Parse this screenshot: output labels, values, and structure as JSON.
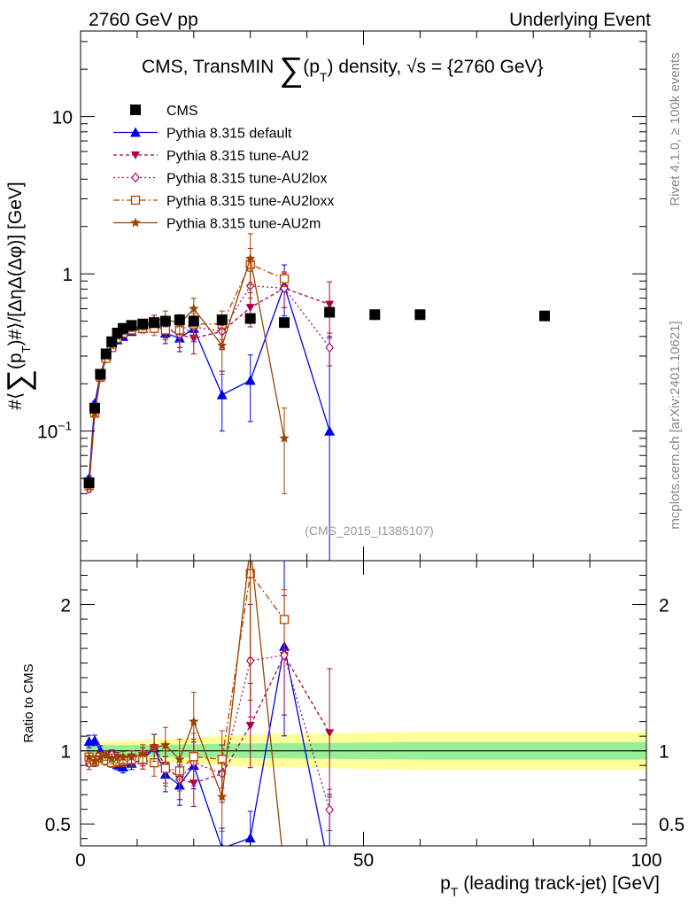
{
  "header": {
    "left": "2760 GeV pp",
    "right": "Underlying Event"
  },
  "side": {
    "rivet": "Rivet 4.1.0, ≥ 100k events",
    "mcplots": "mcplots.cern.ch [arXiv:2401.10621]"
  },
  "chart_data": {
    "type": "scatter",
    "title": "CMS, TransMIN ∑(pT) density, √s = {2760 GeV}",
    "title_parts": {
      "a": "CMS, TransMIN ",
      "sum": "∑",
      "b": "(p",
      "sub": "T",
      "c": ") density, ",
      "sqrt": "√",
      "d": "s = {2760 GeV}"
    },
    "ylabel": "#⟨∑(pT)#⟩/[ΔηΔ(Δφ)] [GeV]",
    "ylabel_parts": {
      "a": "#⟨",
      "sum": "∑",
      "b": "(p",
      "sub": "T",
      "c": ")#⟩/[ΔηΔ(Δφ)] [GeV]"
    },
    "xlabel": "pT (leading track-jet) [GeV]",
    "xlabel_parts": {
      "a": "p",
      "sub": "T",
      "b": " (leading track-jet) [GeV]"
    },
    "ratio_ylabel": "Ratio to CMS",
    "watermark": "(CMS_2015_I1385107)",
    "x_range": [
      0,
      100
    ],
    "y_range": [
      0.015,
      35
    ],
    "y_scale": "log",
    "ratio_range": [
      0.35,
      2.3
    ],
    "x_ticks": [
      {
        "value": 0,
        "label": "0"
      },
      {
        "value": 50,
        "label": "50"
      },
      {
        "value": 100,
        "label": "100"
      }
    ],
    "y_ticks": [
      {
        "value": 0.1,
        "label": "10",
        "sup": "−1"
      },
      {
        "value": 1,
        "label": "1",
        "sup": ""
      },
      {
        "value": 10,
        "label": "10",
        "sup": ""
      }
    ],
    "ratio_ticks": [
      {
        "value": 0.5,
        "label": "0.5"
      },
      {
        "value": 1,
        "label": "1"
      },
      {
        "value": 2,
        "label": "2"
      }
    ],
    "legend_position": "top-left",
    "cms_band": {
      "inner": [
        [
          1,
          0.04
        ],
        [
          10,
          0.04
        ],
        [
          30,
          0.05
        ],
        [
          60,
          0.06
        ],
        [
          100,
          0.06
        ]
      ],
      "outer": [
        [
          1,
          0.06
        ],
        [
          10,
          0.07
        ],
        [
          30,
          0.11
        ],
        [
          60,
          0.13
        ],
        [
          100,
          0.13
        ]
      ]
    },
    "series": [
      {
        "name": "CMS",
        "type": "data",
        "color": "#000000",
        "marker": "square-filled",
        "x": [
          1.5,
          2.5,
          3.5,
          4.5,
          5.5,
          6.5,
          7.5,
          9,
          11,
          13,
          15,
          17.5,
          20,
          25,
          30,
          36,
          44,
          52,
          60,
          82
        ],
        "y": [
          0.047,
          0.14,
          0.23,
          0.31,
          0.37,
          0.42,
          0.45,
          0.47,
          0.48,
          0.49,
          0.5,
          0.51,
          0.5,
          0.51,
          0.52,
          0.49,
          0.57,
          0.55,
          0.55,
          0.54
        ]
      },
      {
        "name": "Pythia 8.315 default",
        "color": "#0000ee",
        "dash": "",
        "marker": "triangle-up-filled",
        "x": [
          1.5,
          2.5,
          3.5,
          4.5,
          5.5,
          6.5,
          7.5,
          9,
          11,
          13,
          15,
          17.5,
          20,
          25,
          30,
          36,
          44
        ],
        "y": [
          0.05,
          0.15,
          0.23,
          0.3,
          0.36,
          0.38,
          0.4,
          0.43,
          0.45,
          0.5,
          0.42,
          0.39,
          0.45,
          0.17,
          0.21,
          0.84,
          0.1
        ],
        "err": [
          0.002,
          0.005,
          0.008,
          0.01,
          0.012,
          0.015,
          0.018,
          0.02,
          0.03,
          0.045,
          0.06,
          0.07,
          0.08,
          0.07,
          0.095,
          0.3,
          0.3
        ]
      },
      {
        "name": "Pythia 8.315 tune-AU2",
        "color": "#aa0044",
        "dash": "4,3",
        "marker": "triangle-down-filled",
        "x": [
          1.5,
          2.5,
          3.5,
          4.5,
          5.5,
          6.5,
          7.5,
          9,
          11,
          13,
          15,
          17.5,
          20,
          25,
          30,
          36,
          44
        ],
        "y": [
          0.044,
          0.13,
          0.22,
          0.29,
          0.36,
          0.4,
          0.42,
          0.45,
          0.46,
          0.5,
          0.45,
          0.41,
          0.39,
          0.43,
          0.61,
          0.81,
          0.64
        ],
        "err": [
          0.002,
          0.005,
          0.008,
          0.01,
          0.012,
          0.015,
          0.018,
          0.02,
          0.03,
          0.045,
          0.06,
          0.07,
          0.08,
          0.1,
          0.15,
          0.2,
          0.25
        ]
      },
      {
        "name": "Pythia 8.315 tune-AU2lox",
        "color": "#aa1166",
        "dash": "2,3",
        "marker": "diamond-open",
        "x": [
          1.5,
          2.5,
          3.5,
          4.5,
          5.5,
          6.5,
          7.5,
          9,
          11,
          13,
          15,
          17.5,
          20,
          25,
          30,
          36,
          44
        ],
        "y": [
          0.043,
          0.13,
          0.22,
          0.29,
          0.36,
          0.4,
          0.42,
          0.45,
          0.46,
          0.5,
          0.45,
          0.41,
          0.46,
          0.43,
          0.84,
          0.81,
          0.34
        ],
        "err": [
          0.002,
          0.005,
          0.008,
          0.01,
          0.012,
          0.015,
          0.018,
          0.02,
          0.03,
          0.045,
          0.06,
          0.07,
          0.08,
          0.1,
          0.2,
          0.2,
          0.08
        ]
      },
      {
        "name": "Pythia 8.315 tune-AU2loxx",
        "color": "#bb4400",
        "dash": "7,3,2,3",
        "marker": "square-open",
        "x": [
          1.5,
          2.5,
          3.5,
          4.5,
          5.5,
          6.5,
          7.5,
          9,
          11,
          13,
          15,
          17.5,
          20,
          25,
          30,
          36
        ],
        "y": [
          0.045,
          0.13,
          0.22,
          0.29,
          0.34,
          0.39,
          0.42,
          0.44,
          0.45,
          0.45,
          0.44,
          0.44,
          0.48,
          0.48,
          1.15,
          0.93
        ],
        "err": [
          0.002,
          0.005,
          0.008,
          0.01,
          0.012,
          0.015,
          0.018,
          0.02,
          0.03,
          0.045,
          0.06,
          0.07,
          0.08,
          0.1,
          0.3,
          0.1
        ]
      },
      {
        "name": "Pythia 8.315 tune-AU2m",
        "color": "#994400",
        "dash": "",
        "marker": "star-filled",
        "x": [
          1.5,
          2.5,
          3.5,
          4.5,
          5.5,
          6.5,
          7.5,
          9,
          11,
          13,
          15,
          17.5,
          20,
          25,
          30,
          36
        ],
        "y": [
          0.045,
          0.13,
          0.22,
          0.3,
          0.35,
          0.4,
          0.43,
          0.45,
          0.47,
          0.5,
          0.52,
          0.48,
          0.6,
          0.35,
          1.25,
          0.09
        ],
        "err": [
          0.002,
          0.005,
          0.008,
          0.01,
          0.012,
          0.015,
          0.018,
          0.02,
          0.03,
          0.045,
          0.06,
          0.07,
          0.1,
          0.12,
          0.55,
          0.05
        ]
      }
    ]
  }
}
